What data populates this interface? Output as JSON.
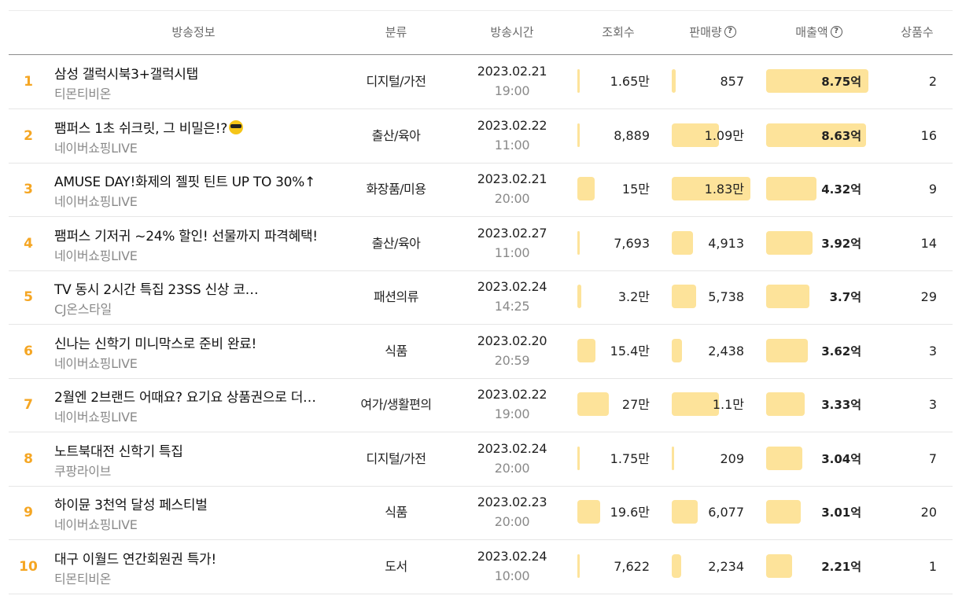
{
  "headers": {
    "broadcast_info": "방송정보",
    "category": "분류",
    "broadcast_time": "방송시간",
    "views": "조회수",
    "sales_volume": "판매량",
    "sales_amount": "매출액",
    "product_count": "상품수"
  },
  "colors": {
    "rank": "#f5a623",
    "bar": "#fde39a"
  },
  "rows": [
    {
      "rank": "1",
      "title": "삼성 갤럭시북3+갤럭시탭",
      "channel": "티몬티비온",
      "category": "디지털/가전",
      "date": "2023.02.21",
      "time": "19:00",
      "views": "1.65만",
      "views_level": 0.08,
      "sales": "857",
      "sales_level": 0.05,
      "amount": "8.75억",
      "amount_level": 1.0,
      "products": "2"
    },
    {
      "rank": "2",
      "title": "팸퍼스 1초 쉬크릿, 그 비밀은!?",
      "title_emoji": "sunglasses-emoji",
      "channel": "네이버쇼핑LIVE",
      "category": "출산/육아",
      "date": "2023.02.22",
      "time": "11:00",
      "views": "8,889",
      "views_level": 0.04,
      "sales": "1.09만",
      "sales_level": 0.6,
      "amount": "8.63억",
      "amount_level": 0.98,
      "products": "16"
    },
    {
      "rank": "3",
      "title": "AMUSE DAY!화제의 젤핏 틴트 UP TO 30%↑",
      "channel": "네이버쇼핑LIVE",
      "category": "화장품/미용",
      "date": "2023.02.21",
      "time": "20:00",
      "views": "15만",
      "views_level": 0.55,
      "sales": "1.83만",
      "sales_level": 1.0,
      "amount": "4.32억",
      "amount_level": 0.49,
      "products": "9"
    },
    {
      "rank": "4",
      "title": "팸퍼스 기저귀 ~24% 할인! 선물까지 파격혜택!",
      "channel": "네이버쇼핑LIVE",
      "category": "출산/육아",
      "date": "2023.02.27",
      "time": "11:00",
      "views": "7,693",
      "views_level": 0.03,
      "sales": "4,913",
      "sales_level": 0.27,
      "amount": "3.92억",
      "amount_level": 0.45,
      "products": "14"
    },
    {
      "rank": "5",
      "title": "TV 동시 2시간 특집 23SS 신상 코…",
      "channel": "CJ온스타일",
      "category": "패션의류",
      "date": "2023.02.24",
      "time": "14:25",
      "views": "3.2만",
      "views_level": 0.13,
      "sales": "5,738",
      "sales_level": 0.31,
      "amount": "3.7억",
      "amount_level": 0.42,
      "products": "29"
    },
    {
      "rank": "6",
      "title": "신나는 신학기 미니막스로 준비 완료!",
      "channel": "네이버쇼핑LIVE",
      "category": "식품",
      "date": "2023.02.20",
      "time": "20:59",
      "views": "15.4만",
      "views_level": 0.57,
      "sales": "2,438",
      "sales_level": 0.13,
      "amount": "3.62억",
      "amount_level": 0.41,
      "products": "3"
    },
    {
      "rank": "7",
      "title": "2월엔 2브랜드 어때요? 요기요 상품권으로 더…",
      "channel": "네이버쇼핑LIVE",
      "category": "여가/생활편의",
      "date": "2023.02.22",
      "time": "19:00",
      "views": "27만",
      "views_level": 1.0,
      "sales": "1.1만",
      "sales_level": 0.6,
      "amount": "3.33억",
      "amount_level": 0.38,
      "products": "3"
    },
    {
      "rank": "8",
      "title": "노트북대전 신학기 특집",
      "channel": "쿠팡라이브",
      "category": "디지털/가전",
      "date": "2023.02.24",
      "time": "20:00",
      "views": "1.75만",
      "views_level": 0.07,
      "sales": "209",
      "sales_level": 0.02,
      "amount": "3.04억",
      "amount_level": 0.35,
      "products": "7"
    },
    {
      "rank": "9",
      "title": "하이뮨 3천억 달성 페스티벌",
      "channel": "네이버쇼핑LIVE",
      "category": "식품",
      "date": "2023.02.23",
      "time": "20:00",
      "views": "19.6만",
      "views_level": 0.73,
      "sales": "6,077",
      "sales_level": 0.33,
      "amount": "3.01억",
      "amount_level": 0.34,
      "products": "20"
    },
    {
      "rank": "10",
      "title": "대구 이월드 연간회원권 특가!",
      "channel": "티몬티비온",
      "category": "도서",
      "date": "2023.02.24",
      "time": "10:00",
      "views": "7,622",
      "views_level": 0.03,
      "sales": "2,234",
      "sales_level": 0.12,
      "amount": "2.21억",
      "amount_level": 0.25,
      "products": "1"
    }
  ]
}
